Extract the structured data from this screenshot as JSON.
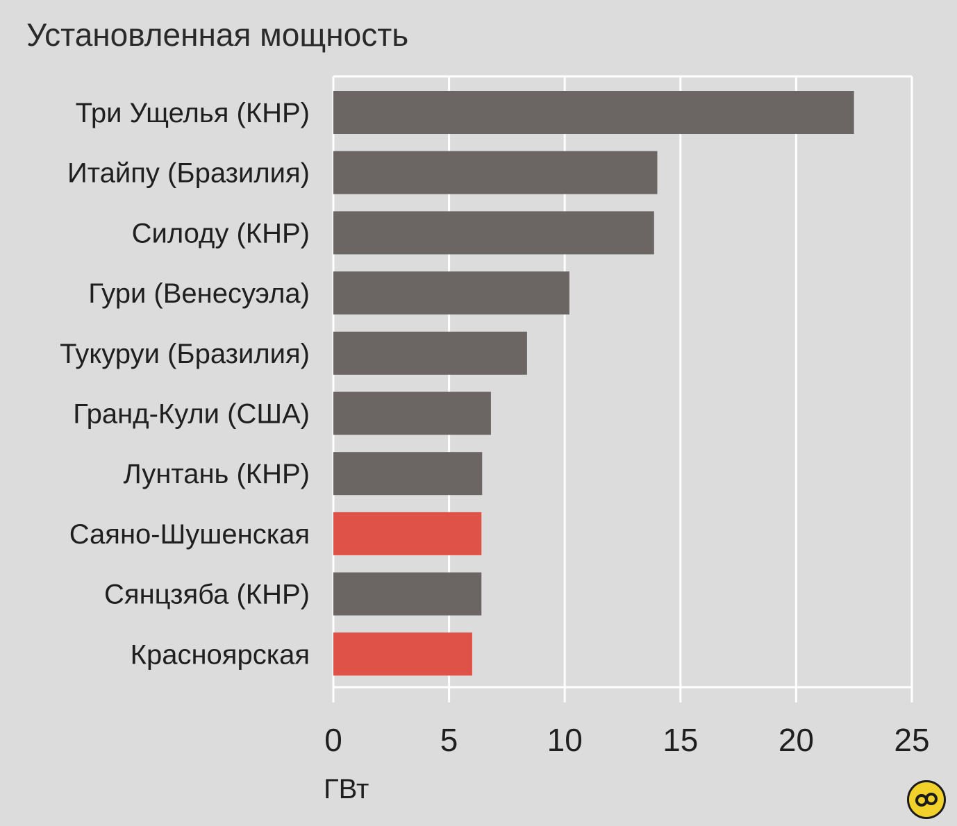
{
  "chart_data": {
    "type": "bar",
    "orientation": "horizontal",
    "title": "Установленная мощность",
    "xlabel": "ГВт",
    "ylabel": "",
    "xlim": [
      0,
      25
    ],
    "xticks": [
      "0",
      "5",
      "10",
      "15",
      "20",
      "25"
    ],
    "grid": true,
    "categories": [
      "Три Ущелья (КНР)",
      "Итайпу (Бразилия)",
      "Силоду (КНР)",
      "Гури (Венесуэла)",
      "Тукуруи (Бразилия)",
      "Гранд-Кули (США)",
      "Лунтань (КНР)",
      "Саяно-Шушенская",
      "Сянцзяба (КНР)",
      "Красноярская"
    ],
    "values": [
      22.5,
      14.0,
      13.86,
      10.2,
      8.37,
      6.81,
      6.43,
      6.4,
      6.4,
      6.0
    ],
    "colors": [
      "#6b6664",
      "#6b6664",
      "#6b6664",
      "#6b6664",
      "#6b6664",
      "#6b6664",
      "#6b6664",
      "#df5247",
      "#6b6664",
      "#df5247"
    ]
  },
  "style": {
    "background": "#dcdcdc",
    "bar_default": "#6b6664",
    "bar_highlight": "#df5247",
    "grid_color": "#ffffff"
  },
  "logo": {
    "icon": "circular-yellow-logo-icon",
    "color": "#f2d22a"
  }
}
